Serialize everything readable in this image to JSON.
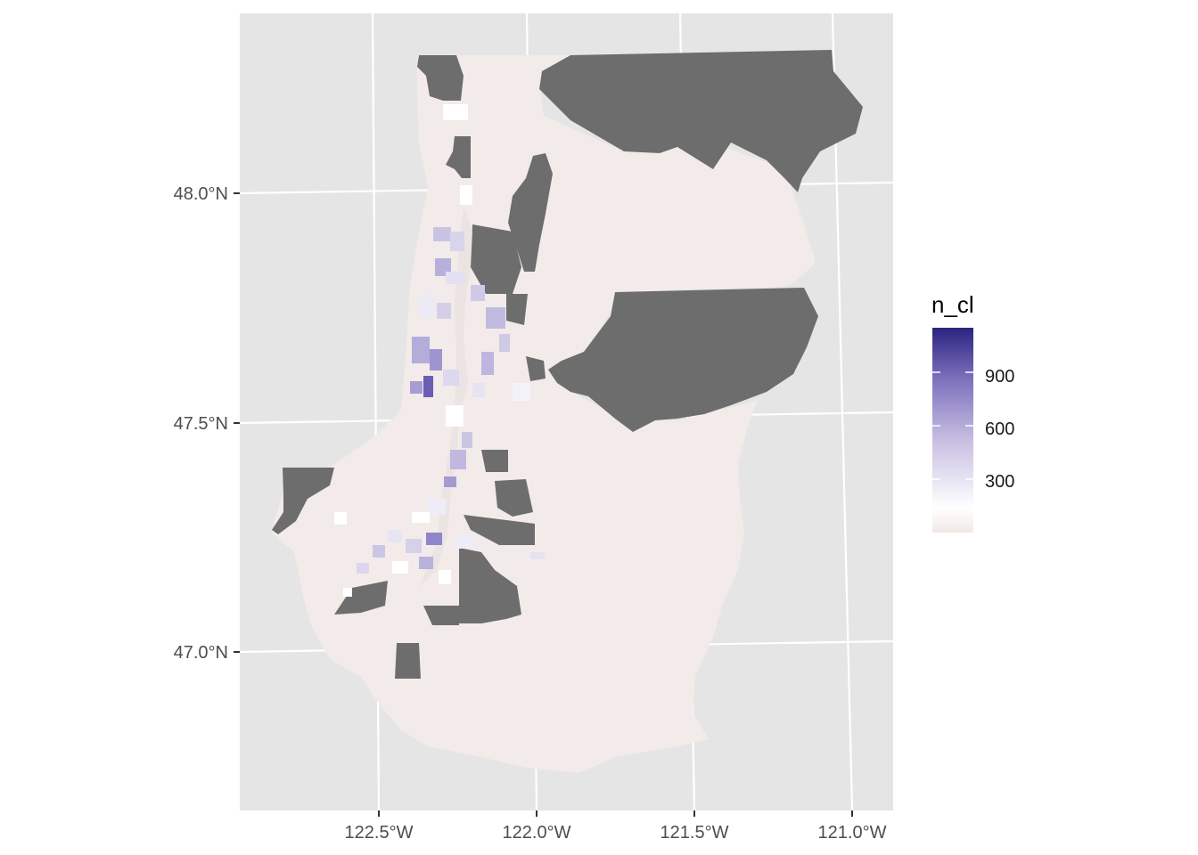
{
  "map": {
    "axes": {
      "x_ticks": [
        "122.5°W",
        "122.0°W",
        "121.5°W",
        "121.0°W"
      ],
      "y_ticks": [
        "48.0°N",
        "47.5°N",
        "47.0°N"
      ]
    },
    "legend": {
      "title": "n_cl",
      "labels": [
        "900",
        "600",
        "300"
      ],
      "values": [
        900,
        600,
        300
      ],
      "range": [
        0,
        1150
      ],
      "colors": {
        "low": "#f2e8e6",
        "mid": "#ffffff",
        "high": "#2a2480"
      }
    },
    "colors": {
      "panel_background": "#e5e5e5",
      "grid_line": "#ffffff",
      "no_data": "#6d6d6d",
      "base_region": "#f3ebe9"
    }
  }
}
